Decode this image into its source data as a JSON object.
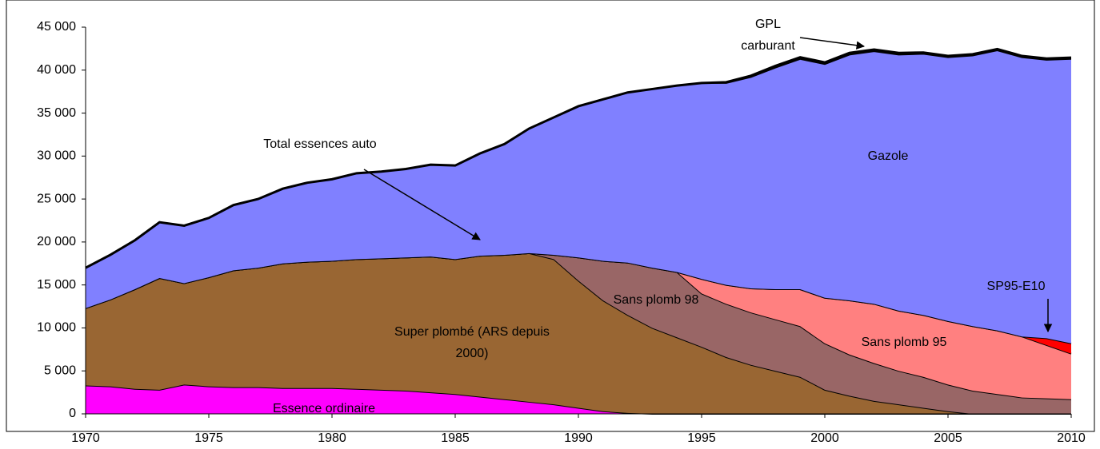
{
  "chart_data": {
    "type": "stacked_area",
    "x": [
      1970,
      1971,
      1972,
      1973,
      1974,
      1975,
      1976,
      1977,
      1978,
      1979,
      1980,
      1981,
      1982,
      1983,
      1984,
      1985,
      1986,
      1987,
      1988,
      1989,
      1990,
      1991,
      1992,
      1993,
      1994,
      1995,
      1996,
      1997,
      1998,
      1999,
      2000,
      2001,
      2002,
      2003,
      2004,
      2005,
      2006,
      2007,
      2008,
      2009,
      2010
    ],
    "series": [
      {
        "name": "Essence ordinaire",
        "color": "#ff00ff",
        "values": [
          3300,
          3200,
          2900,
          2800,
          3400,
          3200,
          3100,
          3100,
          3000,
          3000,
          3000,
          2900,
          2800,
          2700,
          2500,
          2300,
          2000,
          1700,
          1400,
          1100,
          700,
          300,
          100,
          0,
          0,
          0,
          0,
          0,
          0,
          0,
          0,
          0,
          0,
          0,
          0,
          0,
          0,
          0,
          0,
          0,
          0
        ]
      },
      {
        "name": "Super plombé (ARS depuis 2000)",
        "color": "#996633",
        "values": [
          9000,
          10100,
          11600,
          13000,
          11800,
          12700,
          13600,
          13900,
          14500,
          14700,
          14800,
          15100,
          15300,
          15500,
          15800,
          15700,
          16400,
          16800,
          17300,
          16900,
          14800,
          12900,
          11400,
          10000,
          8900,
          7800,
          6600,
          5700,
          5000,
          4300,
          2800,
          2100,
          1500,
          1100,
          700,
          300,
          0,
          0,
          0,
          0,
          0
        ]
      },
      {
        "name": "Sans plomb 98",
        "color": "#996666",
        "values": [
          0,
          0,
          0,
          0,
          0,
          0,
          0,
          0,
          0,
          0,
          0,
          0,
          0,
          0,
          0,
          0,
          0,
          0,
          0,
          500,
          2700,
          4600,
          6100,
          7000,
          7600,
          6200,
          6200,
          6100,
          6000,
          5900,
          5400,
          4800,
          4400,
          3900,
          3600,
          3100,
          2700,
          2300,
          1900,
          1800,
          1700
        ]
      },
      {
        "name": "Sans plomb 95",
        "color": "#ff8080",
        "values": [
          0,
          0,
          0,
          0,
          0,
          0,
          0,
          0,
          0,
          0,
          0,
          0,
          0,
          0,
          0,
          0,
          0,
          0,
          0,
          0,
          0,
          0,
          0,
          0,
          0,
          1700,
          2200,
          2800,
          3500,
          4300,
          5300,
          6300,
          6900,
          7000,
          7200,
          7400,
          7500,
          7400,
          7100,
          6200,
          5300
        ]
      },
      {
        "name": "SP95-E10",
        "color": "#ff0000",
        "values": [
          0,
          0,
          0,
          0,
          0,
          0,
          0,
          0,
          0,
          0,
          0,
          0,
          0,
          0,
          0,
          0,
          0,
          0,
          0,
          0,
          0,
          0,
          0,
          0,
          0,
          0,
          0,
          0,
          0,
          0,
          0,
          0,
          0,
          0,
          0,
          0,
          0,
          0,
          0,
          800,
          1200
        ]
      },
      {
        "name": "Gazole",
        "color": "#8080ff",
        "values": [
          4700,
          5200,
          5700,
          6500,
          6700,
          6900,
          7600,
          8000,
          8700,
          9200,
          9500,
          10000,
          10100,
          10300,
          10700,
          10900,
          11900,
          12900,
          14500,
          16000,
          17600,
          18800,
          19800,
          20800,
          21700,
          22800,
          23500,
          24600,
          25800,
          26800,
          27200,
          28600,
          29400,
          29800,
          30400,
          30700,
          31500,
          32600,
          32500,
          32400,
          33100
        ]
      },
      {
        "name": "GPL carburant",
        "color": "#000000",
        "values": [
          0,
          0,
          0,
          0,
          0,
          0,
          0,
          0,
          0,
          0,
          0,
          0,
          0,
          0,
          0,
          0,
          0,
          0,
          0,
          0,
          0,
          0,
          0,
          0,
          0,
          0,
          100,
          150,
          200,
          200,
          200,
          200,
          200,
          200,
          150,
          150,
          150,
          150,
          150,
          150,
          150
        ]
      }
    ],
    "annotations": [
      {
        "text": "Total essences auto"
      }
    ],
    "xlim": [
      1970,
      2010
    ],
    "xticks": [
      1970,
      1975,
      1980,
      1985,
      1990,
      1995,
      2000,
      2005,
      2010
    ],
    "ylim": [
      0,
      45000
    ],
    "yticks": [
      0,
      {
        "value": 5000,
        "label": "5 000"
      },
      {
        "value": 10000,
        "label": "10 000"
      },
      {
        "value": 15000,
        "label": "15 000"
      },
      {
        "value": 20000,
        "label": "20 000"
      },
      {
        "value": 25000,
        "label": "25 000"
      },
      {
        "value": 30000,
        "label": "30 000"
      },
      {
        "value": 35000,
        "label": "35 000"
      },
      {
        "value": 40000,
        "label": "40 000"
      },
      {
        "value": 45000,
        "label": "45 000"
      }
    ],
    "grid": false
  }
}
